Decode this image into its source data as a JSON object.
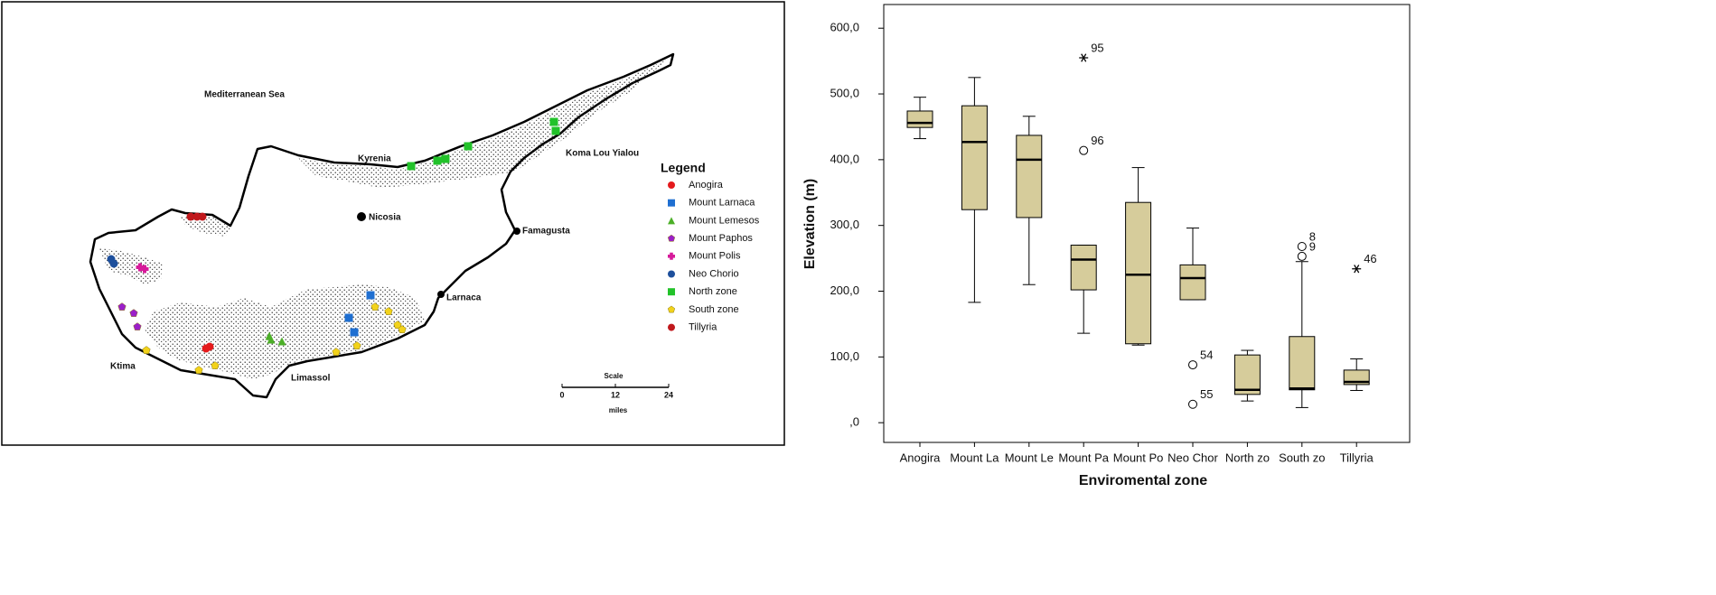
{
  "map": {
    "place_labels": [
      "Mediterranean Sea",
      "Kyrenia",
      "Koma Lou Yialou",
      "Nicosia",
      "Famagusta",
      "Larnaca",
      "Ktima",
      "Limassol"
    ],
    "legend_title": "Legend",
    "legend": [
      {
        "label": "Anogira",
        "color": "#e41a1c",
        "shape": "circle"
      },
      {
        "label": "Mount Larnaca",
        "color": "#1f6fd1",
        "shape": "square"
      },
      {
        "label": "Mount Lemesos",
        "color": "#4caf28",
        "shape": "triangle"
      },
      {
        "label": "Mount Paphos",
        "color": "#9b1fc9",
        "shape": "pentagon"
      },
      {
        "label": "Mount Polis",
        "color": "#d61a9a",
        "shape": "plus"
      },
      {
        "label": "Neo Chorio",
        "color": "#1d4f9c",
        "shape": "circle"
      },
      {
        "label": "North zone",
        "color": "#22c22a",
        "shape": "square"
      },
      {
        "label": "South zone",
        "color": "#f2d21b",
        "shape": "pentagon"
      },
      {
        "label": "Tillyria",
        "color": "#c0181c",
        "shape": "circle"
      }
    ],
    "scale_title": "Scale",
    "scale_ticks": [
      0,
      12,
      24
    ],
    "scale_unit": "miles"
  },
  "chart_data": {
    "type": "box",
    "y_label": "Elevation (m)",
    "x_label": "Enviromental zone",
    "categories": [
      "Anogira",
      "Mount La",
      "Mount Le",
      "Mount Pa",
      "Mount Po",
      "Neo Chor",
      "North zo",
      "South zo",
      "Tillyria"
    ],
    "min": [
      432,
      183,
      210,
      136,
      118,
      187,
      33,
      23,
      49
    ],
    "q1": [
      449,
      324,
      312,
      202,
      120,
      187,
      43,
      50,
      58
    ],
    "median": [
      456,
      427,
      400,
      248,
      225,
      220,
      50,
      52,
      62
    ],
    "q3": [
      474,
      482,
      437,
      270,
      335,
      240,
      103,
      131,
      80
    ],
    "max": [
      495,
      525,
      466,
      270,
      388,
      296,
      110,
      245,
      97
    ],
    "outliers": [
      [],
      [],
      [],
      [
        {
          "value": 555,
          "label": "95",
          "marker": "star"
        },
        {
          "value": 414,
          "label": "96",
          "marker": "circle"
        }
      ],
      [],
      [
        {
          "value": 88,
          "label": "54",
          "marker": "circle"
        },
        {
          "value": 28,
          "label": "55",
          "marker": "circle"
        }
      ],
      [],
      [
        {
          "value": 268,
          "label": "8",
          "marker": "circle"
        },
        {
          "value": 253,
          "label": "9",
          "marker": "circle"
        }
      ],
      [
        {
          "value": 234,
          "label": "46",
          "marker": "star"
        }
      ]
    ],
    "color": "#d6cc9b",
    "ylim": [
      -30,
      636
    ],
    "yticks": [
      {
        "value": 0,
        "label": ",0"
      },
      {
        "value": 100,
        "label": "100,0"
      },
      {
        "value": 200,
        "label": "200,0"
      },
      {
        "value": 300,
        "label": "300,0"
      },
      {
        "value": 400,
        "label": "400,0"
      },
      {
        "value": 500,
        "label": "500,0"
      },
      {
        "value": 600,
        "label": "600,0"
      }
    ]
  }
}
